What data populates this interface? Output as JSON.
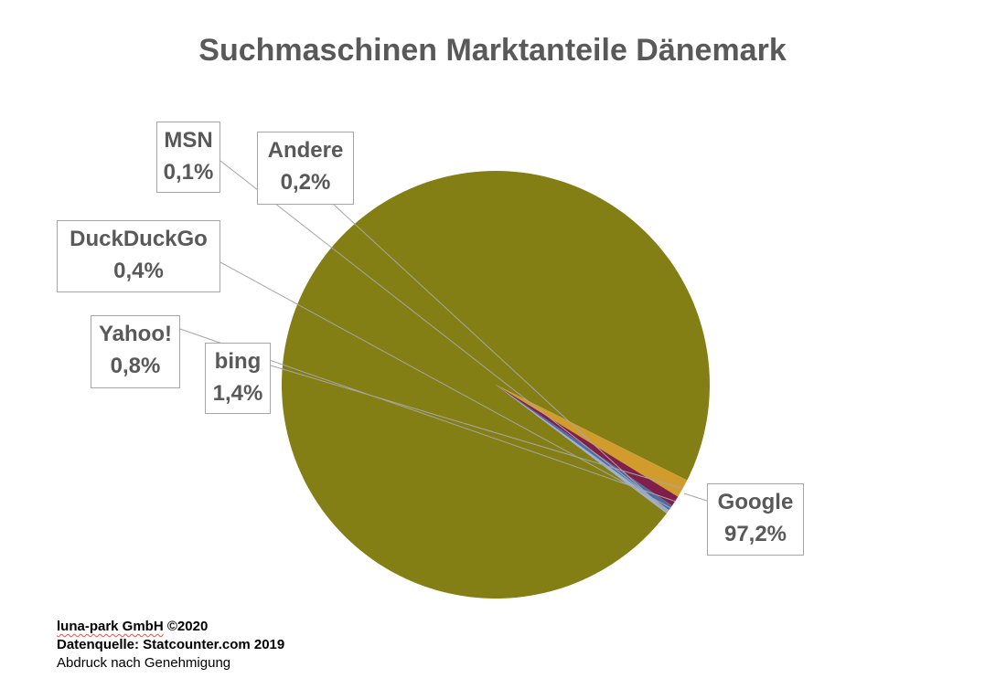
{
  "chart_data": {
    "type": "pie",
    "title": "Suchmaschinen Marktanteile Dänemark",
    "slices": [
      {
        "name": "Google",
        "value": 97.2,
        "label": "97,2%",
        "color": "#837F14"
      },
      {
        "name": "bing",
        "value": 1.4,
        "label": "1,4%",
        "color": "#D29C2D"
      },
      {
        "name": "Yahoo!",
        "value": 0.8,
        "label": "0,8%",
        "color": "#7F1F4A"
      },
      {
        "name": "DuckDuckGo",
        "value": 0.4,
        "label": "0,4%",
        "color": "#4F6CA8"
      },
      {
        "name": "MSN",
        "value": 0.1,
        "label": "0,1%",
        "color": "#8AA7D6"
      },
      {
        "name": "Andere",
        "value": 0.2,
        "label": "0,2%",
        "color": "#9DAFC9"
      }
    ]
  },
  "footer": {
    "company": "luna-park GmbH",
    "copyright": "©2020",
    "source": "Datenquelle: Statcounter.com 2019",
    "note": "Abdruck nach Genehmigung"
  }
}
